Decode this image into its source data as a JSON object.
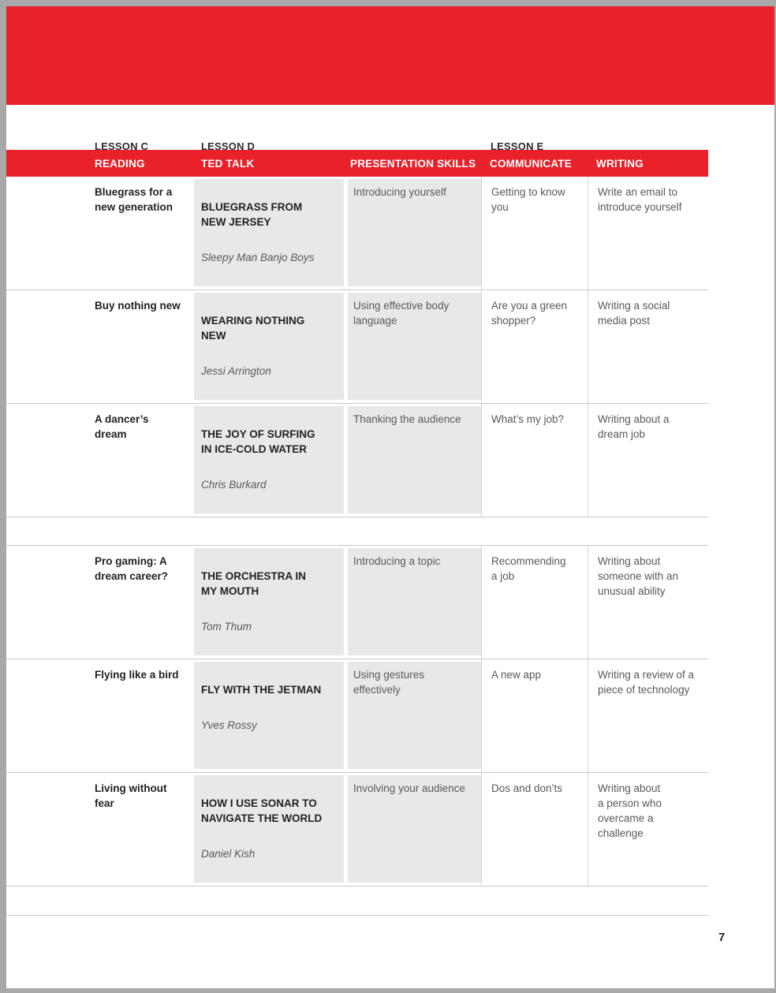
{
  "theme": {
    "accent_red": "#e8212b",
    "cell_gray": "#e8e8e8"
  },
  "page": {
    "page_number": "7"
  },
  "lessons": [
    {
      "label": "LESSON C"
    },
    {
      "label": "LESSON D"
    },
    {
      "label": "LESSON E"
    }
  ],
  "table": {
    "columns": [
      "READING",
      "TED TALK",
      "PRESENTATION SKILLS",
      "COMMUNICATE",
      "WRITING"
    ],
    "rows": [
      {
        "reading": "Bluegrass for a\nnew generation",
        "talk_title": "BLUEGRASS FROM\nNEW JERSEY",
        "speaker": "Sleepy Man Banjo Boys",
        "skills": "Introducing yourself",
        "communicate": "Getting to know\nyou",
        "writing": "Write an email to\nintroduce yourself"
      },
      {
        "reading": "Buy nothing new",
        "talk_title": "WEARING NOTHING\nNEW",
        "speaker": "Jessi Arrington",
        "skills": "Using effective body\nlanguage",
        "communicate": "Are you a green\nshopper?",
        "writing": "Writing a social\nmedia post"
      },
      {
        "reading": "A dancer’s\ndream",
        "talk_title": "THE JOY OF SURFING\nIN ICE-COLD WATER",
        "speaker": "Chris Burkard",
        "skills": "Thanking the audience",
        "communicate": "What’s my job?",
        "writing": "Writing about a\ndream job"
      },
      {
        "reading": "Pro gaming: A\ndream career?",
        "talk_title": "THE ORCHESTRA IN\nMY MOUTH",
        "speaker": "Tom Thum",
        "skills": "Introducing a topic",
        "communicate": "Recommending\na job",
        "writing": "Writing about\nsomeone with an\nunusual ability"
      },
      {
        "reading": "Flying like a bird",
        "talk_title": "FLY WITH THE JETMAN",
        "speaker": "Yves Rossy",
        "skills": "Using gestures\neffectively",
        "communicate": "A new app",
        "writing": "Writing a review of a\npiece of technology"
      },
      {
        "reading": "Living without\nfear",
        "talk_title": "HOW I USE SONAR TO\nNAVIGATE THE WORLD",
        "speaker": "Daniel Kish",
        "skills": "Involving your audience",
        "communicate": "Dos and don’ts",
        "writing": "Writing about\na person who\novercame a\nchallenge"
      }
    ]
  }
}
